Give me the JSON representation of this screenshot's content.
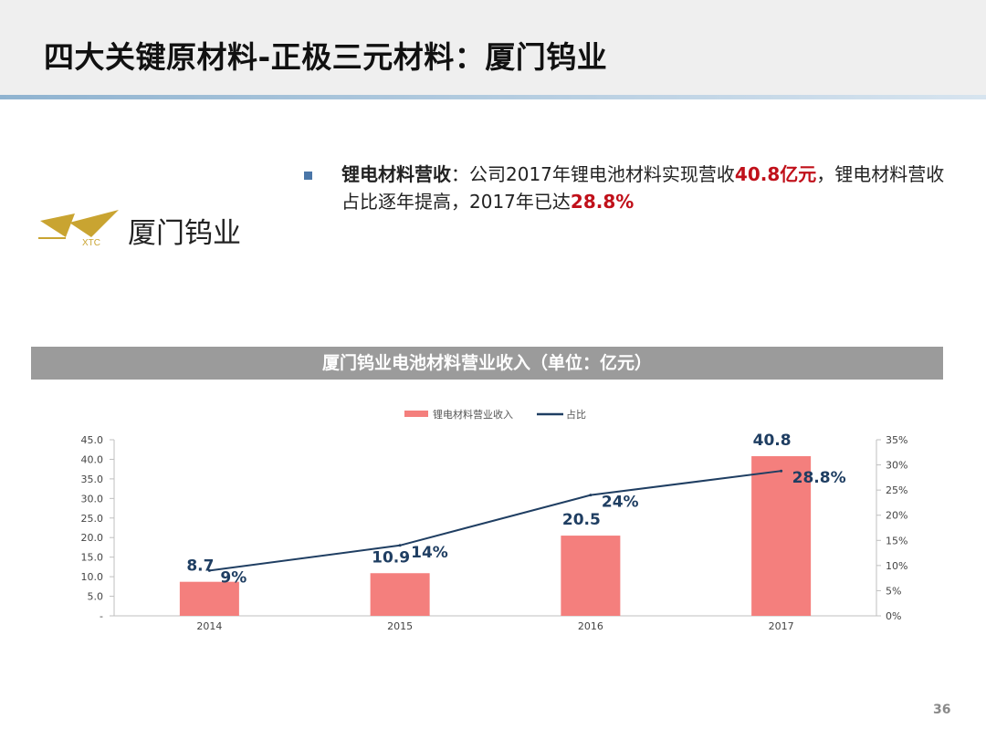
{
  "slide": {
    "title": "四大关键原材料-正极三元材料：厦门钨业",
    "page_number": "36",
    "logo": {
      "mark_text": "XTC",
      "name": "厦门钨业"
    },
    "bullet": {
      "lead": "锂电材料营收",
      "text1": "：公司2017年锂电池材料实现营收",
      "highlight1": "40.8亿元",
      "text2": "，锂电材料营收占比逐年提高，2017年已达",
      "highlight2": "28.8%"
    },
    "chart_header": "厦门钨业电池材料营业收入（单位：亿元）"
  },
  "colors": {
    "bar": "#f47f7d",
    "line": "#1f3e62",
    "header_bg": "#9b9b9b",
    "accent_red": "#c0101a"
  },
  "chart_data": {
    "type": "bar",
    "categories": [
      "2014",
      "2015",
      "2016",
      "2017"
    ],
    "series": [
      {
        "name": "锂电材料营业收入",
        "type": "bar",
        "axis": "left",
        "values": [
          8.7,
          10.9,
          20.5,
          40.8
        ],
        "labels": [
          "8.7",
          "10.9",
          "20.5",
          "40.8"
        ]
      },
      {
        "name": "占比",
        "type": "line",
        "axis": "right",
        "values": [
          9,
          14,
          24,
          28.8
        ],
        "labels": [
          "9%",
          "14%",
          "24%",
          "28.8%"
        ]
      }
    ],
    "left_axis": {
      "ylim": [
        0,
        45
      ],
      "ticks": [
        "-",
        "5.0",
        "10.0",
        "15.0",
        "20.0",
        "25.0",
        "30.0",
        "35.0",
        "40.0",
        "45.0"
      ]
    },
    "right_axis": {
      "ylim": [
        0,
        35
      ],
      "ticks": [
        "0%",
        "5%",
        "10%",
        "15%",
        "20%",
        "25%",
        "30%",
        "35%"
      ]
    },
    "legend_position": "top-center",
    "grid": false
  }
}
